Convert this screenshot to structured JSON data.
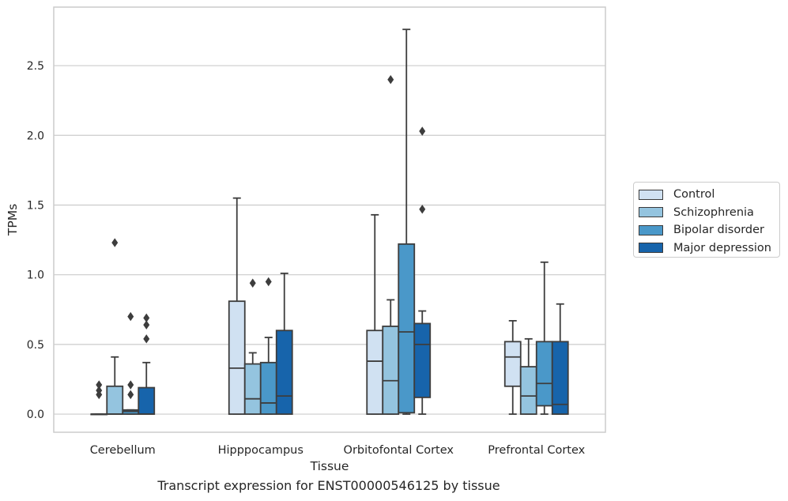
{
  "chart_data": {
    "type": "box",
    "xlabel": "Tissue",
    "ylabel": "TPMs",
    "ylim": [
      -0.13,
      2.92
    ],
    "yticks": [
      0.0,
      0.5,
      1.0,
      1.5,
      2.0,
      2.5
    ],
    "ytick_labels": [
      "0.0",
      "0.5",
      "1.0",
      "1.5",
      "2.0",
      "2.5"
    ],
    "grid": true,
    "legend_placement": "right",
    "categories": [
      "Cerebellum",
      "Hipppocampus",
      "Orbitofontal Cortex",
      "Prefrontal Cortex"
    ],
    "series": [
      {
        "name": "Control",
        "color": "#d0e1f2",
        "boxes": [
          {
            "whislo": 0.0,
            "q1": 0.0,
            "med": 0.0,
            "q3": 0.0,
            "whishi": 0.0,
            "fliers": [
              0.14,
              0.17,
              0.21
            ]
          },
          {
            "whislo": 0.0,
            "q1": 0.0,
            "med": 0.33,
            "q3": 0.81,
            "whishi": 1.55,
            "fliers": []
          },
          {
            "whislo": 0.0,
            "q1": 0.0,
            "med": 0.38,
            "q3": 0.6,
            "whishi": 1.43,
            "fliers": []
          },
          {
            "whislo": 0.0,
            "q1": 0.2,
            "med": 0.41,
            "q3": 0.52,
            "whishi": 0.67,
            "fliers": []
          }
        ]
      },
      {
        "name": "Schizophrenia",
        "color": "#94c4df",
        "boxes": [
          {
            "whislo": 0.0,
            "q1": 0.0,
            "med": 0.0,
            "q3": 0.2,
            "whishi": 0.41,
            "fliers": [
              1.23
            ]
          },
          {
            "whislo": 0.0,
            "q1": 0.0,
            "med": 0.11,
            "q3": 0.36,
            "whishi": 0.44,
            "fliers": [
              0.94
            ]
          },
          {
            "whislo": 0.0,
            "q1": 0.0,
            "med": 0.24,
            "q3": 0.63,
            "whishi": 0.82,
            "fliers": [
              2.4
            ]
          },
          {
            "whislo": 0.0,
            "q1": 0.0,
            "med": 0.13,
            "q3": 0.34,
            "whishi": 0.54,
            "fliers": []
          }
        ]
      },
      {
        "name": "Bipolar disorder",
        "color": "#4a98c9",
        "boxes": [
          {
            "whislo": 0.0,
            "q1": 0.0,
            "med": 0.02,
            "q3": 0.03,
            "whishi": 0.03,
            "fliers": [
              0.14,
              0.21,
              0.7
            ]
          },
          {
            "whislo": 0.0,
            "q1": 0.0,
            "med": 0.08,
            "q3": 0.37,
            "whishi": 0.55,
            "fliers": [
              0.95
            ]
          },
          {
            "whislo": 0.0,
            "q1": 0.01,
            "med": 0.59,
            "q3": 1.22,
            "whishi": 2.76,
            "fliers": []
          },
          {
            "whislo": 0.0,
            "q1": 0.06,
            "med": 0.22,
            "q3": 0.52,
            "whishi": 1.09,
            "fliers": []
          }
        ]
      },
      {
        "name": "Major depression",
        "color": "#1764ab",
        "boxes": [
          {
            "whislo": 0.0,
            "q1": 0.0,
            "med": 0.0,
            "q3": 0.19,
            "whishi": 0.37,
            "fliers": [
              0.54,
              0.64,
              0.69
            ]
          },
          {
            "whislo": 0.0,
            "q1": 0.0,
            "med": 0.13,
            "q3": 0.6,
            "whishi": 1.01,
            "fliers": []
          },
          {
            "whislo": 0.0,
            "q1": 0.12,
            "med": 0.5,
            "q3": 0.65,
            "whishi": 0.74,
            "fliers": [
              1.47,
              2.03
            ]
          },
          {
            "whislo": 0.0,
            "q1": 0.0,
            "med": 0.07,
            "q3": 0.52,
            "whishi": 0.79,
            "fliers": []
          }
        ]
      }
    ],
    "caption": "Transcript expression for ENST00000546125 by tissue"
  }
}
